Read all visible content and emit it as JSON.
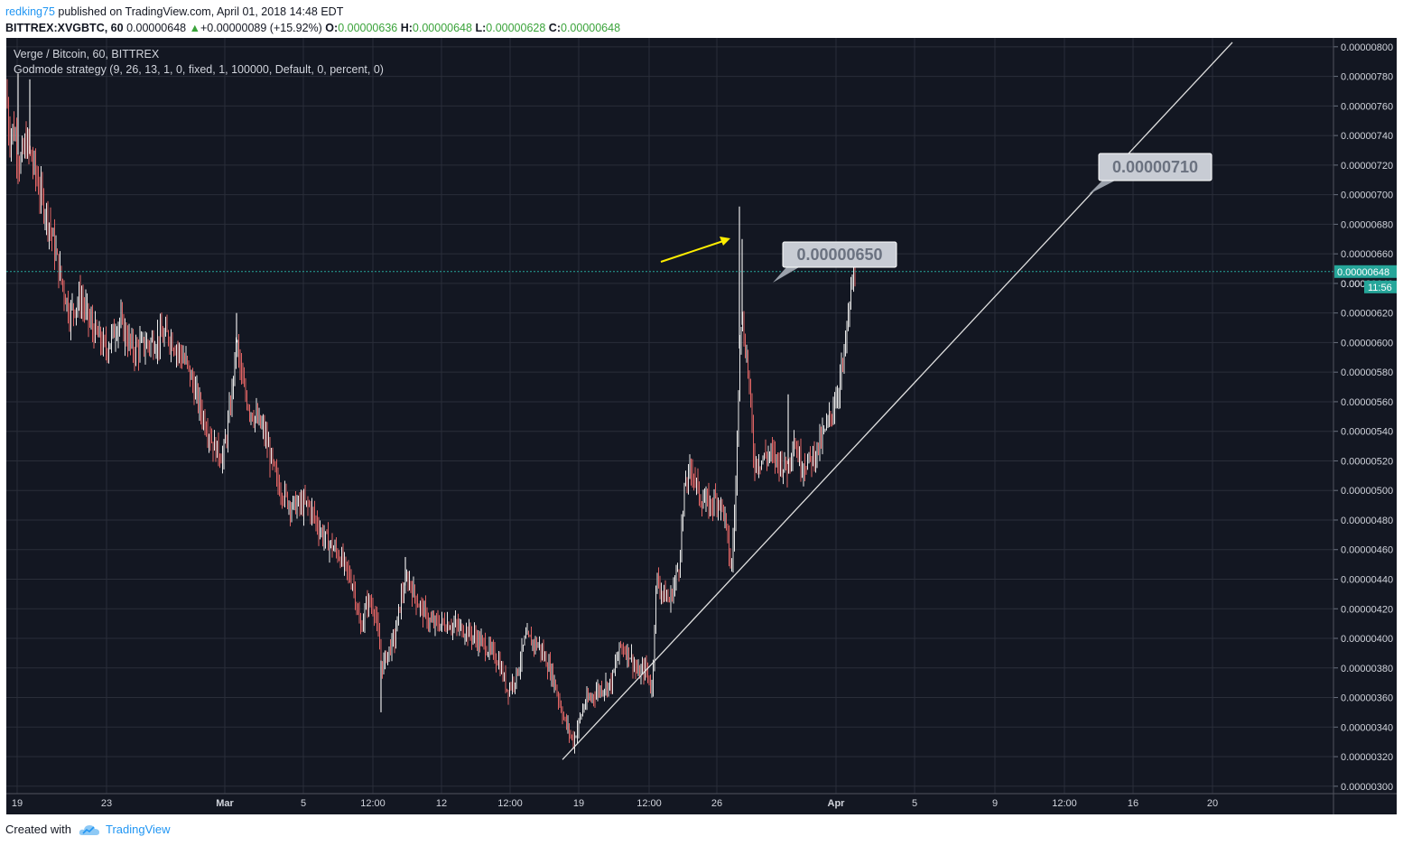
{
  "header": {
    "author": "redking75",
    "published": "published on TradingView.com, April 01, 2018 14:48 EDT",
    "symbol": "BITTREX:XVGBTC, 60",
    "last": "0.00000648",
    "change": "+0.00000089 (+15.92%)",
    "o_label": "O:",
    "o_value": "0.00000636",
    "h_label": "H:",
    "h_value": "0.00000648",
    "l_label": "L:",
    "l_value": "0.00000628",
    "c_label": "C:",
    "c_value": "0.00000648"
  },
  "legend": {
    "title": "Verge / Bitcoin, 60, BITTREX",
    "strategy": "Godmode strategy (9, 26, 13, 1, 0, fixed, 1, 100000, Default, 0, percent, 0)"
  },
  "footer": {
    "created_with": "Created with",
    "brand": "TradingView"
  },
  "colors": {
    "background": "#131722",
    "grid": "#2a2e39",
    "axis_text": "#d1d4dc",
    "up": "#e8e8e8",
    "down": "#e06464",
    "price_line": "#26a69a",
    "arrow": "#ffee00",
    "callout_fill": "#c8ccd4",
    "trend": "#e0e0e0"
  },
  "chart_data": {
    "type": "candlestick",
    "symbol": "XVG/BTC",
    "ylim": [
      2.95e-06,
      8.06e-06
    ],
    "y_ticks": [
      "0.00000800",
      "0.00000780",
      "0.00000760",
      "0.00000740",
      "0.00000720",
      "0.00000700",
      "0.00000680",
      "0.00000660",
      "0.00000640",
      "0.00000620",
      "0.00000600",
      "0.00000580",
      "0.00000560",
      "0.00000540",
      "0.00000520",
      "0.00000500",
      "0.00000480",
      "0.00000460",
      "0.00000440",
      "0.00000420",
      "0.00000400",
      "0.00000380",
      "0.00000360",
      "0.00000340",
      "0.00000320",
      "0.00000300"
    ],
    "x_ticks": [
      "19",
      "23",
      "Mar",
      "5",
      "12:00",
      "12",
      "12:00",
      "19",
      "12:00",
      "26",
      "Apr",
      "5",
      "9",
      "12:00",
      "16",
      "20"
    ],
    "last_price": {
      "label": "0.00000648",
      "value": 6.48e-06,
      "countdown": "11:56",
      "partial_label": "0.0000"
    },
    "series_path": [
      [
        0,
        7.7e-06
      ],
      [
        3,
        7.4e-06
      ],
      [
        8,
        7.45e-06
      ],
      [
        15,
        7.2e-06
      ],
      [
        22,
        7.35e-06
      ],
      [
        30,
        7.2e-06
      ],
      [
        38,
        7e-06
      ],
      [
        48,
        6.8e-06
      ],
      [
        58,
        6.5e-06
      ],
      [
        70,
        6.2e-06
      ],
      [
        82,
        6.3e-06
      ],
      [
        95,
        6.1e-06
      ],
      [
        110,
        5.95e-06
      ],
      [
        125,
        6.15e-06
      ],
      [
        140,
        5.95e-06
      ],
      [
        160,
        6e-06
      ],
      [
        180,
        6.05e-06
      ],
      [
        200,
        5.85e-06
      ],
      [
        215,
        5.55e-06
      ],
      [
        230,
        5.3e-06
      ],
      [
        240,
        5.22e-06
      ],
      [
        248,
        5.55e-06
      ],
      [
        255,
        6e-06
      ],
      [
        262,
        5.7e-06
      ],
      [
        270,
        5.55e-06
      ],
      [
        285,
        5.4e-06
      ],
      [
        300,
        5.05e-06
      ],
      [
        315,
        4.9e-06
      ],
      [
        335,
        4.9e-06
      ],
      [
        350,
        4.7e-06
      ],
      [
        370,
        4.55e-06
      ],
      [
        385,
        4.35e-06
      ],
      [
        392,
        4.05e-06
      ],
      [
        400,
        4.25e-06
      ],
      [
        408,
        4.2e-06
      ],
      [
        416,
        3.8e-06
      ],
      [
        422,
        3.9e-06
      ],
      [
        430,
        4e-06
      ],
      [
        438,
        4.3e-06
      ],
      [
        445,
        4.4e-06
      ],
      [
        455,
        4.25e-06
      ],
      [
        470,
        4.1e-06
      ],
      [
        490,
        4.1e-06
      ],
      [
        510,
        4.05e-06
      ],
      [
        530,
        3.95e-06
      ],
      [
        545,
        3.85e-06
      ],
      [
        555,
        3.65e-06
      ],
      [
        565,
        3.75e-06
      ],
      [
        575,
        4e-06
      ],
      [
        590,
        3.95e-06
      ],
      [
        605,
        3.75e-06
      ],
      [
        618,
        3.45e-06
      ],
      [
        628,
        3.3e-06
      ],
      [
        640,
        3.55e-06
      ],
      [
        655,
        3.65e-06
      ],
      [
        670,
        3.7e-06
      ],
      [
        680,
        3.95e-06
      ],
      [
        690,
        3.9e-06
      ],
      [
        700,
        3.75e-06
      ],
      [
        708,
        3.8e-06
      ],
      [
        715,
        3.65e-06
      ],
      [
        720,
        4.4e-06
      ],
      [
        728,
        4.3e-06
      ],
      [
        735,
        4.25e-06
      ],
      [
        745,
        4.5e-06
      ],
      [
        752,
        5.05e-06
      ],
      [
        760,
        5.15e-06
      ],
      [
        768,
        4.95e-06
      ],
      [
        778,
        4.9e-06
      ],
      [
        788,
        4.95e-06
      ],
      [
        795,
        4.85e-06
      ],
      [
        803,
        4.45e-06
      ],
      [
        808,
        5e-06
      ],
      [
        813,
        6.2e-06
      ],
      [
        818,
        6e-06
      ],
      [
        822,
        5.8e-06
      ],
      [
        828,
        5.2e-06
      ],
      [
        835,
        5.2e-06
      ],
      [
        845,
        5.25e-06
      ],
      [
        855,
        5.2e-06
      ],
      [
        865,
        5.15e-06
      ],
      [
        872,
        5.35e-06
      ],
      [
        880,
        5.18e-06
      ],
      [
        890,
        5.2e-06
      ],
      [
        900,
        5.3e-06
      ],
      [
        910,
        5.45e-06
      ],
      [
        920,
        5.65e-06
      ],
      [
        928,
        5.9e-06
      ],
      [
        933,
        6.2e-06
      ],
      [
        937,
        6.4e-06
      ],
      [
        940,
        6.48e-06
      ]
    ],
    "wick_spikes": [
      [
        13,
        7.82e-06
      ],
      [
        26,
        7.78e-06
      ],
      [
        255,
        6.2e-06
      ],
      [
        415,
        3.5e-06
      ],
      [
        442,
        4.55e-06
      ],
      [
        812,
        6.92e-06
      ],
      [
        815,
        6.7e-06
      ],
      [
        866,
        5.65e-06
      ]
    ],
    "annotations": [
      {
        "type": "callout",
        "text": "0.00000650",
        "anchor_value": 6.5e-06
      },
      {
        "type": "callout",
        "text": "0.00000710",
        "anchor_value": 7.1e-06
      },
      {
        "type": "arrow",
        "color": "#ffee00"
      },
      {
        "type": "trendline",
        "from": [
          616,
          3.18e-06
        ],
        "to": [
          1358,
          8.03e-06
        ]
      }
    ]
  }
}
